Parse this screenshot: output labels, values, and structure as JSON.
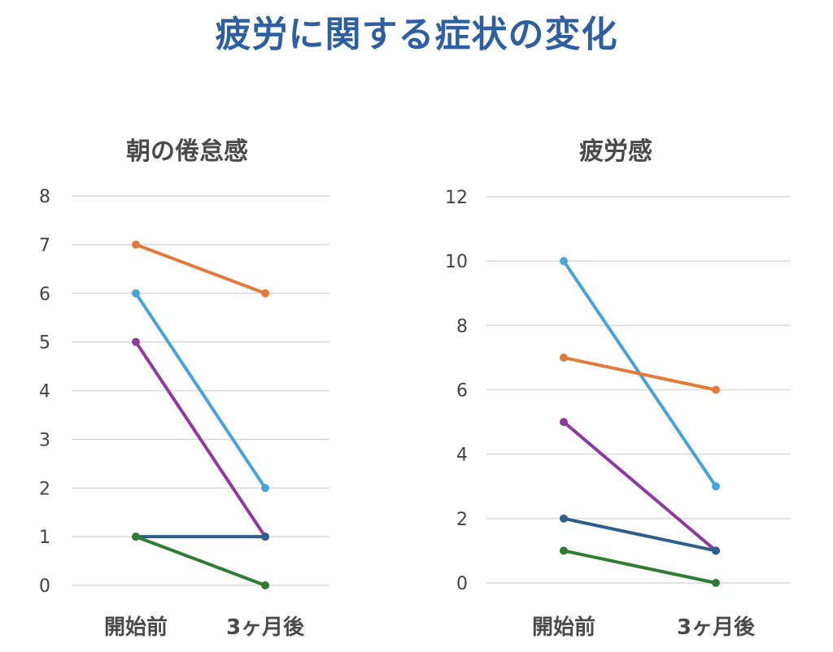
{
  "page_title": "疲労に関する症状の変化",
  "colors": {
    "title": "#2f5f9e",
    "orange": "#e07b3c",
    "lightblue": "#4aa3d8",
    "purple": "#8e3a9e",
    "darkblue": "#2d5f8a",
    "green": "#2e7d32"
  },
  "chart_data": [
    {
      "type": "line",
      "title": "朝の倦怠感",
      "categories": [
        "開始前",
        "3ヶ月後"
      ],
      "ylim": [
        0,
        8
      ],
      "yticks": [
        0,
        1,
        2,
        3,
        4,
        5,
        6,
        7,
        8
      ],
      "grid": true,
      "series": [
        {
          "values": [
            7,
            6
          ],
          "color": "#e07b3c"
        },
        {
          "values": [
            6,
            2
          ],
          "color": "#4aa3d8"
        },
        {
          "values": [
            5,
            1
          ],
          "color": "#8e3a9e"
        },
        {
          "values": [
            1,
            1
          ],
          "color": "#2d5f8a"
        },
        {
          "values": [
            1,
            0
          ],
          "color": "#2e7d32"
        }
      ]
    },
    {
      "type": "line",
      "title": "疲労感",
      "categories": [
        "開始前",
        "3ヶ月後"
      ],
      "ylim": [
        0,
        12
      ],
      "yticks": [
        0,
        2,
        4,
        6,
        8,
        10,
        12
      ],
      "grid": true,
      "series": [
        {
          "values": [
            10,
            3
          ],
          "color": "#4aa3d8"
        },
        {
          "values": [
            7,
            6
          ],
          "color": "#e07b3c"
        },
        {
          "values": [
            5,
            1
          ],
          "color": "#8e3a9e"
        },
        {
          "values": [
            2,
            1
          ],
          "color": "#2d5f8a"
        },
        {
          "values": [
            1,
            0
          ],
          "color": "#2e7d32"
        }
      ]
    }
  ]
}
